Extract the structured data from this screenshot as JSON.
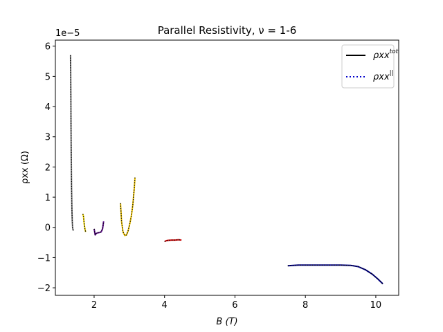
{
  "chart_data": {
    "type": "line",
    "title": "Parallel Resistivity, ν = 1-6",
    "xlabel": "B (T)",
    "ylabel": "ρxx (Ω)",
    "y_scale_label": "1e−5",
    "xlim": [
      0.9,
      10.65
    ],
    "ylim": [
      -2.25,
      6.2
    ],
    "x_ticks": [
      2,
      4,
      6,
      8,
      10
    ],
    "y_ticks": [
      -2,
      -1,
      0,
      1,
      2,
      3,
      4,
      5,
      6
    ],
    "y_tick_labels": [
      "−2",
      "−1",
      "0",
      "1",
      "2",
      "3",
      "4",
      "5",
      "6"
    ],
    "grid": false,
    "legend_position": "top-right",
    "legend": [
      {
        "label": "ρxx",
        "superscript": "tot",
        "style": "solid",
        "color": "#000000"
      },
      {
        "label": "ρxx",
        "superscript": "||",
        "style": "dotted",
        "color": "#0000cc"
      }
    ],
    "series": [
      {
        "color": "#808080",
        "x": [
          1.33,
          1.335,
          1.34,
          1.345,
          1.35,
          1.36,
          1.37,
          1.38,
          1.39,
          1.4,
          1.42
        ],
        "y": [
          5.7,
          5.2,
          4.3,
          3.3,
          2.4,
          1.3,
          0.6,
          0.2,
          0.0,
          -0.08,
          -0.1
        ]
      },
      {
        "color": "#f2d600",
        "x": [
          1.68,
          1.7,
          1.72,
          1.74,
          1.76
        ],
        "y": [
          0.45,
          0.35,
          0.1,
          -0.05,
          -0.15
        ]
      },
      {
        "color": "#5b0a8a",
        "x": [
          2.0,
          2.03,
          2.06,
          2.1,
          2.15,
          2.2,
          2.24,
          2.27
        ],
        "y": [
          -0.05,
          -0.25,
          -0.2,
          -0.18,
          -0.17,
          -0.15,
          -0.05,
          0.2
        ]
      },
      {
        "color": "#f2c600",
        "x": [
          2.75,
          2.78,
          2.82,
          2.87,
          2.92,
          2.97,
          3.02,
          3.06,
          3.1,
          3.14,
          3.16
        ],
        "y": [
          0.8,
          0.2,
          -0.15,
          -0.27,
          -0.25,
          -0.1,
          0.15,
          0.4,
          0.75,
          1.3,
          1.65
        ]
      },
      {
        "color": "#d80000",
        "x": [
          4.0,
          4.05,
          4.1,
          4.2,
          4.3,
          4.4,
          4.48
        ],
        "y": [
          -0.47,
          -0.44,
          -0.43,
          -0.42,
          -0.42,
          -0.41,
          -0.42
        ]
      },
      {
        "color": "#00008b",
        "x": [
          7.5,
          7.8,
          8.0,
          8.5,
          9.0,
          9.3,
          9.5,
          9.7,
          9.9,
          10.05,
          10.2
        ],
        "y": [
          -1.27,
          -1.25,
          -1.25,
          -1.25,
          -1.25,
          -1.26,
          -1.3,
          -1.4,
          -1.55,
          -1.7,
          -1.87
        ]
      }
    ]
  }
}
